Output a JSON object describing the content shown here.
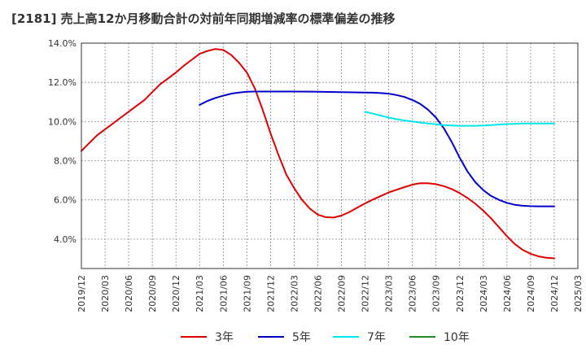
{
  "chart_data": {
    "type": "line",
    "title": "[2181]  売上高12か月移動合計の対前年同期増減率の標準偏差の推移",
    "xlabel": "",
    "ylabel": "",
    "ylim": [
      2.5,
      14.0
    ],
    "y_ticks": [
      "14.0%",
      "12.0%",
      "10.0%",
      "8.0%",
      "6.0%",
      "4.0%"
    ],
    "y_tick_values": [
      14,
      12,
      10,
      8,
      6,
      4
    ],
    "x_ticks": [
      "2019/12",
      "2020/03",
      "2020/06",
      "2020/09",
      "2020/12",
      "2021/03",
      "2021/06",
      "2021/09",
      "2021/12",
      "2022/03",
      "2022/06",
      "2022/09",
      "2022/12",
      "2023/03",
      "2023/06",
      "2023/09",
      "2023/12",
      "2024/03",
      "2024/06",
      "2024/09",
      "2024/12",
      "2025/03"
    ],
    "grid": true,
    "legend_position": "bottom",
    "series": [
      {
        "name": "3年",
        "color": "#dd0000",
        "x": [
          "2019/12",
          "2020/01",
          "2020/02",
          "2020/03",
          "2020/04",
          "2020/05",
          "2020/06",
          "2020/07",
          "2020/08",
          "2020/09",
          "2020/10",
          "2020/11",
          "2020/12",
          "2021/01",
          "2021/02",
          "2021/03",
          "2021/04",
          "2021/05",
          "2021/06",
          "2021/07",
          "2021/08",
          "2021/09",
          "2021/10",
          "2021/11",
          "2021/12",
          "2022/01",
          "2022/02",
          "2022/03",
          "2022/04",
          "2022/05",
          "2022/06",
          "2022/07",
          "2022/08",
          "2022/09",
          "2022/10",
          "2022/11",
          "2022/12",
          "2023/01",
          "2023/02",
          "2023/03",
          "2023/04",
          "2023/05",
          "2023/06",
          "2023/07",
          "2023/08",
          "2023/09",
          "2023/10",
          "2023/11",
          "2023/12",
          "2024/01",
          "2024/02",
          "2024/03",
          "2024/04",
          "2024/05",
          "2024/06",
          "2024/07",
          "2024/08",
          "2024/09",
          "2024/10",
          "2024/11",
          "2024/12"
        ],
        "values": [
          8.5,
          8.9,
          9.3,
          9.6,
          9.9,
          10.2,
          10.5,
          10.8,
          11.1,
          11.5,
          11.9,
          12.2,
          12.5,
          12.85,
          13.15,
          13.45,
          13.6,
          13.7,
          13.65,
          13.4,
          13.0,
          12.5,
          11.7,
          10.6,
          9.4,
          8.3,
          7.3,
          6.6,
          6.0,
          5.55,
          5.25,
          5.12,
          5.1,
          5.2,
          5.38,
          5.6,
          5.82,
          6.02,
          6.2,
          6.38,
          6.52,
          6.65,
          6.78,
          6.85,
          6.85,
          6.8,
          6.7,
          6.55,
          6.35,
          6.1,
          5.8,
          5.45,
          5.05,
          4.6,
          4.15,
          3.75,
          3.45,
          3.25,
          3.12,
          3.05,
          3.02
        ]
      },
      {
        "name": "5年",
        "color": "#0000cc",
        "x": [
          "2021/03",
          "2021/04",
          "2021/05",
          "2021/06",
          "2021/07",
          "2021/08",
          "2021/09",
          "2021/10",
          "2021/11",
          "2021/12",
          "2022/03",
          "2022/06",
          "2022/09",
          "2022/12",
          "2023/01",
          "2023/02",
          "2023/03",
          "2023/04",
          "2023/05",
          "2023/06",
          "2023/07",
          "2023/08",
          "2023/09",
          "2023/10",
          "2023/11",
          "2023/12",
          "2024/01",
          "2024/02",
          "2024/03",
          "2024/04",
          "2024/05",
          "2024/06",
          "2024/07",
          "2024/08",
          "2024/09",
          "2024/10",
          "2024/11",
          "2024/12"
        ],
        "values": [
          10.85,
          11.05,
          11.2,
          11.32,
          11.42,
          11.48,
          11.52,
          11.53,
          11.53,
          11.53,
          11.53,
          11.52,
          11.5,
          11.48,
          11.47,
          11.45,
          11.42,
          11.35,
          11.25,
          11.1,
          10.9,
          10.6,
          10.2,
          9.65,
          8.95,
          8.15,
          7.45,
          6.9,
          6.5,
          6.2,
          6.0,
          5.85,
          5.75,
          5.7,
          5.68,
          5.67,
          5.67,
          5.67
        ]
      },
      {
        "name": "7年",
        "color": "#00e5ee",
        "x": [
          "2022/12",
          "2023/01",
          "2023/02",
          "2023/03",
          "2023/04",
          "2023/05",
          "2023/06",
          "2023/07",
          "2023/08",
          "2023/09",
          "2023/10",
          "2023/11",
          "2023/12",
          "2024/01",
          "2024/02",
          "2024/03",
          "2024/04",
          "2024/05",
          "2024/06",
          "2024/07",
          "2024/08",
          "2024/09",
          "2024/10",
          "2024/11",
          "2024/12"
        ],
        "values": [
          10.5,
          10.4,
          10.3,
          10.2,
          10.12,
          10.05,
          10.0,
          9.95,
          9.9,
          9.86,
          9.82,
          9.8,
          9.78,
          9.78,
          9.78,
          9.8,
          9.82,
          9.85,
          9.87,
          9.88,
          9.9,
          9.9,
          9.9,
          9.9,
          9.9
        ]
      },
      {
        "name": "10年",
        "color": "#228b22",
        "x": [],
        "values": []
      }
    ]
  }
}
